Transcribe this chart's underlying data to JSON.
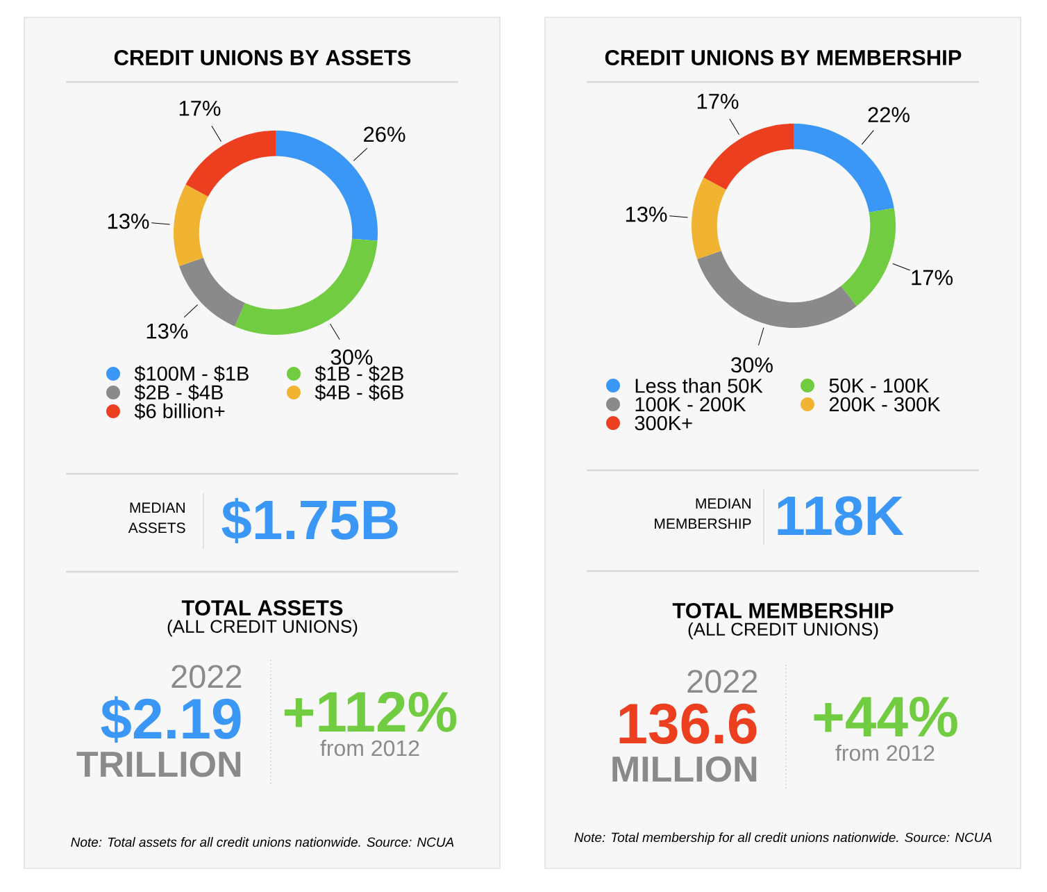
{
  "chart_data": [
    {
      "type": "donut",
      "title": "CREDIT UNIONS BY ASSETS",
      "categories": [
        "$100M - $1B",
        "$1B - $2B",
        "$2B - $4B",
        "$4B - $6B",
        "$6 billion+"
      ],
      "values": [
        26,
        30,
        13,
        13,
        17
      ],
      "value_labels": [
        "26%",
        "30%",
        "13%",
        "13%",
        "17%"
      ],
      "colors": [
        "#3a97f5",
        "#72cc42",
        "#8a8a8a",
        "#f0b432",
        "#ec3f1f"
      ],
      "legend": "bottom"
    },
    {
      "type": "other",
      "title": "TOTAL ASSETS",
      "subtitle": "(ALL CREDIT UNIONS)",
      "annotations": [
        "MEDIAN",
        "ASSETS",
        "$1.75B",
        "2022",
        "$2.19",
        "TRILLION",
        "+112%",
        "from 2012",
        "Note: Total assets for all credit unions nationwide. Source: NCUA"
      ]
    },
    {
      "type": "donut",
      "title": "CREDIT UNIONS BY MEMBERSHIP",
      "categories": [
        "Less than 50K",
        "50K - 100K",
        "100K - 200K",
        "200K - 300K",
        "300K+"
      ],
      "values": [
        22,
        17,
        30,
        13,
        17
      ],
      "value_labels": [
        "22%",
        "17%",
        "30%",
        "13%",
        "17%"
      ],
      "colors": [
        "#3a97f5",
        "#72cc42",
        "#8a8a8a",
        "#f0b432",
        "#ec3f1f"
      ],
      "legend": "bottom"
    },
    {
      "type": "other",
      "title": "TOTAL MEMBERSHIP",
      "subtitle": "(ALL CREDIT UNIONS)",
      "annotations": [
        "MEDIAN",
        "MEMBERSHIP",
        "118K",
        "2022",
        "136.6",
        "MILLION",
        "+44%",
        "from 2012",
        "Note: Total membership for all credit unions nationwide. Source: NCUA"
      ]
    }
  ]
}
